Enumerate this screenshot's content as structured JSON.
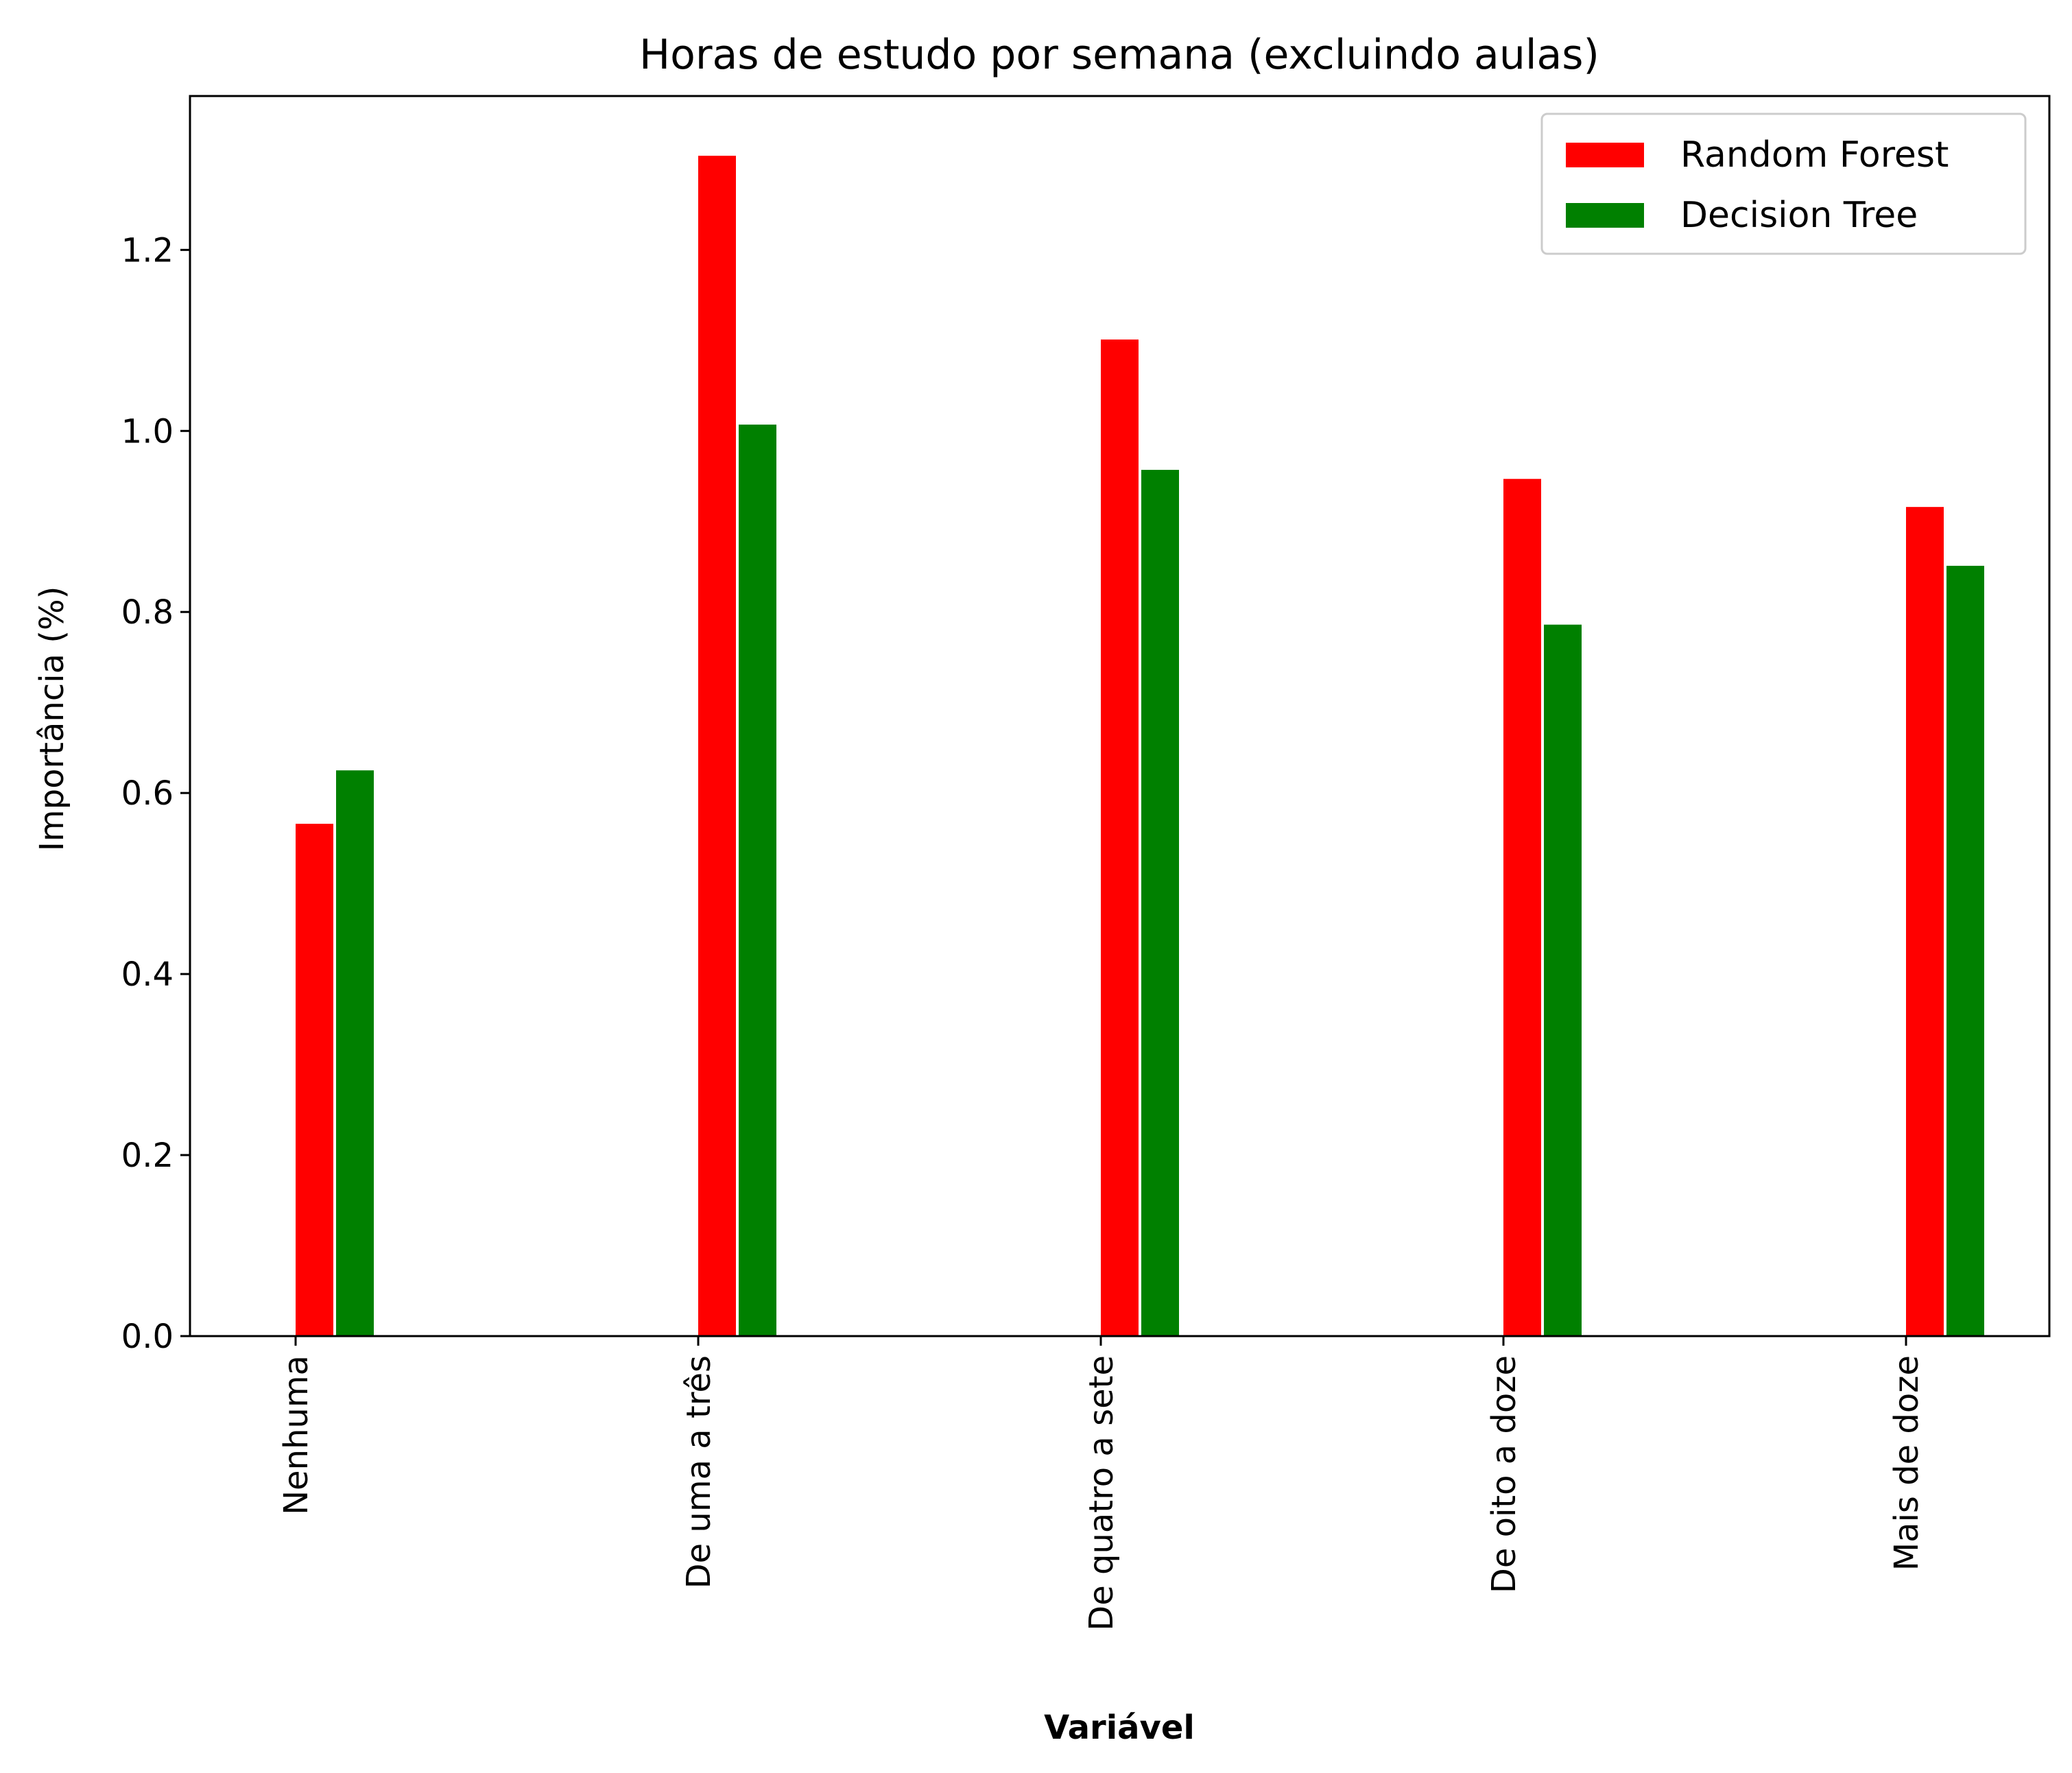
{
  "chart_data": {
    "type": "bar",
    "title": "Horas de estudo por semana (excluindo aulas)",
    "xlabel": "Variável",
    "ylabel": "Importância (%)",
    "categories": [
      "Nenhuma",
      "De uma a três",
      "De quatro a sete",
      "De oito a doze",
      "Mais de doze"
    ],
    "series": [
      {
        "name": "Random Forest",
        "color": "#ff0000",
        "values": [
          0.566,
          1.304,
          1.101,
          0.947,
          0.916
        ]
      },
      {
        "name": "Decision Tree",
        "color": "#008000",
        "values": [
          0.625,
          1.007,
          0.957,
          0.786,
          0.851
        ]
      }
    ],
    "ylim": [
      0,
      1.37
    ],
    "yticks": [
      0.0,
      0.2,
      0.4,
      0.6,
      0.8,
      1.0,
      1.2
    ],
    "ytick_labels": [
      "0.0",
      "0.2",
      "0.4",
      "0.6",
      "0.8",
      "1.0",
      "1.2"
    ],
    "grid": false,
    "legend_position": "top-right"
  }
}
